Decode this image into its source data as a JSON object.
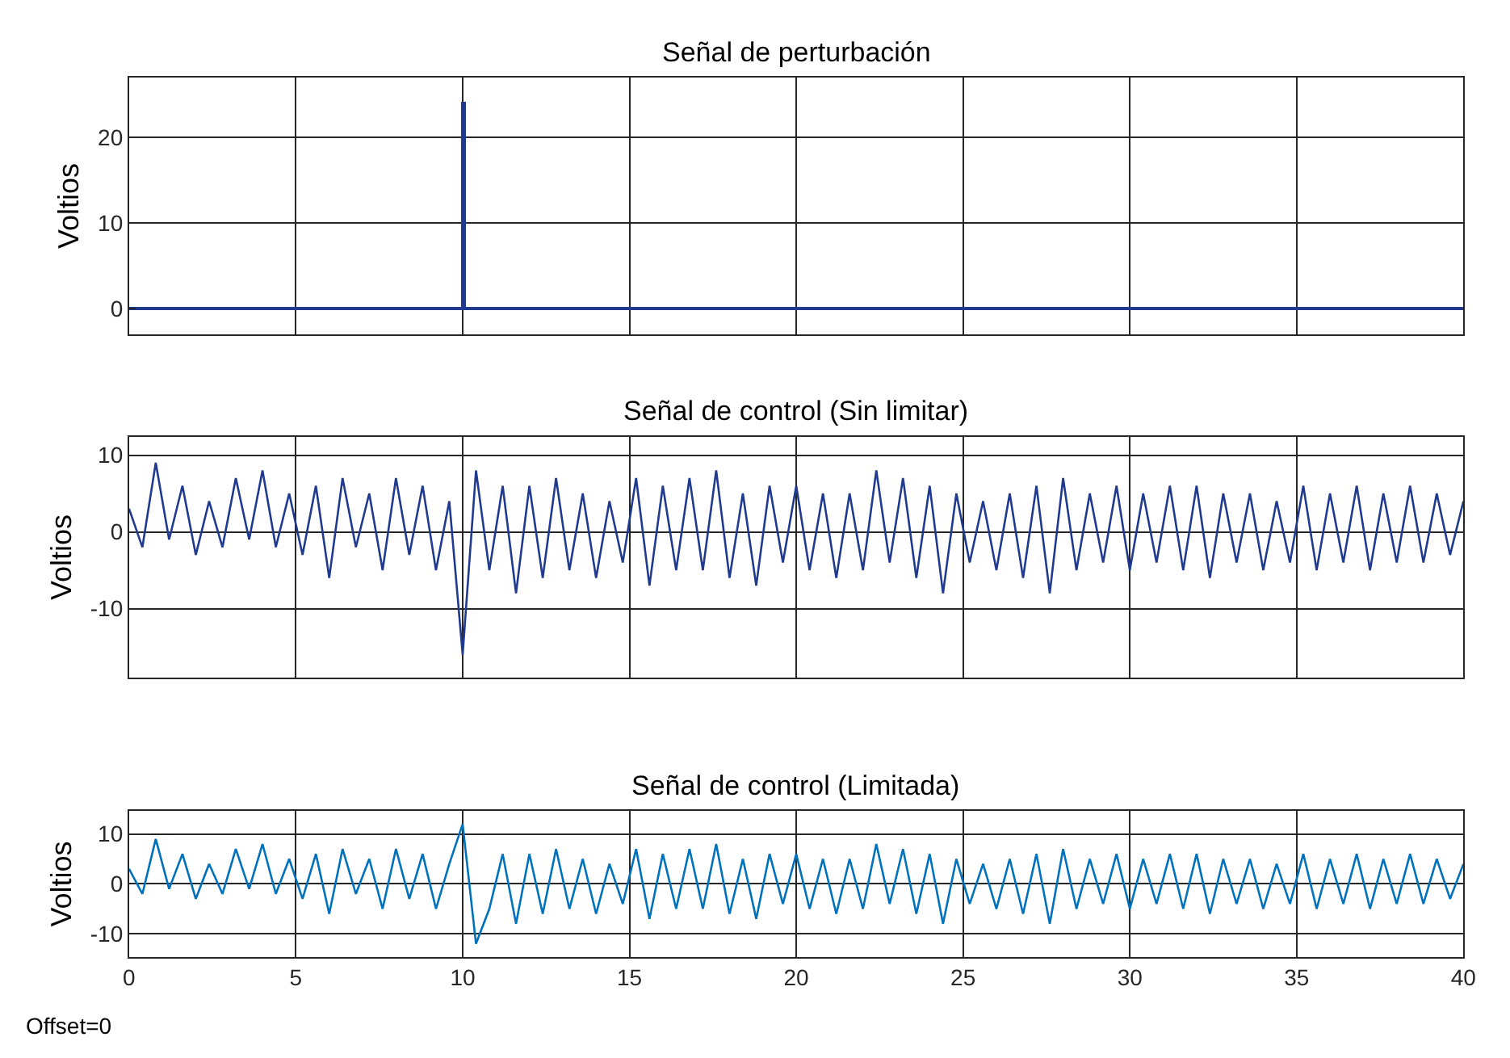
{
  "chart_data": [
    {
      "type": "line",
      "title": "Señal de perturbación",
      "ylabel": "Voltios",
      "x": [
        0,
        10,
        10,
        10.05,
        10.05,
        40
      ],
      "series": [
        {
          "color": "#203a90",
          "values": [
            0,
            0,
            24,
            24,
            0,
            0
          ]
        }
      ],
      "xlim": [
        0,
        40
      ],
      "xticks": [
        0,
        5,
        10,
        15,
        20,
        25,
        30,
        35,
        40
      ],
      "ylim": [
        -3,
        27
      ],
      "yticks": [
        0,
        10,
        20
      ],
      "grid": true,
      "tick_labels": "y"
    },
    {
      "type": "line",
      "title": "Señal de control (Sin limitar)",
      "ylabel": "Voltios",
      "x": [
        0,
        0.4,
        0.8,
        1.2,
        1.6,
        2,
        2.4,
        2.8,
        3.2,
        3.6,
        4,
        4.4,
        4.8,
        5.2,
        5.6,
        6,
        6.4,
        6.8,
        7.2,
        7.6,
        8,
        8.4,
        8.8,
        9.2,
        9.6,
        10,
        10.4,
        10.8,
        11.2,
        11.6,
        12,
        12.4,
        12.8,
        13.2,
        13.6,
        14,
        14.4,
        14.8,
        15.2,
        15.6,
        16,
        16.4,
        16.8,
        17.2,
        17.6,
        18,
        18.4,
        18.8,
        19.2,
        19.6,
        20,
        20.4,
        20.8,
        21.2,
        21.6,
        22,
        22.4,
        22.8,
        23.2,
        23.6,
        24,
        24.4,
        24.8,
        25.2,
        25.6,
        26,
        26.4,
        26.8,
        27.2,
        27.6,
        28,
        28.4,
        28.8,
        29.2,
        29.6,
        30,
        30.4,
        30.8,
        31.2,
        31.6,
        32,
        32.4,
        32.8,
        33.2,
        33.6,
        34,
        34.4,
        34.8,
        35.2,
        35.6,
        36,
        36.4,
        36.8,
        37.2,
        37.6,
        38,
        38.4,
        38.8,
        39.2,
        39.6,
        40
      ],
      "series": [
        {
          "color": "#203a90",
          "values": [
            3,
            -2,
            9,
            -1,
            6,
            -3,
            4,
            -2,
            7,
            -1,
            8,
            -2,
            5,
            -3,
            6,
            -6,
            7,
            -2,
            5,
            -5,
            7,
            -3,
            6,
            -5,
            4,
            -16,
            8,
            -5,
            6,
            -8,
            6,
            -6,
            7,
            -5,
            5,
            -6,
            4,
            -4,
            7,
            -7,
            6,
            -5,
            7,
            -5,
            8,
            -6,
            5,
            -7,
            6,
            -4,
            6,
            -5,
            5,
            -6,
            5,
            -5,
            8,
            -4,
            7,
            -6,
            6,
            -8,
            5,
            -4,
            4,
            -5,
            5,
            -6,
            6,
            -8,
            7,
            -5,
            5,
            -4,
            6,
            -5,
            5,
            -4,
            6,
            -5,
            6,
            -6,
            5,
            -4,
            5,
            -5,
            4,
            -4,
            6,
            -5,
            5,
            -4,
            6,
            -5,
            5,
            -4,
            6,
            -4,
            5,
            -3,
            4
          ]
        }
      ],
      "xlim": [
        0,
        40
      ],
      "xticks": [
        0,
        5,
        10,
        15,
        20,
        25,
        30,
        35,
        40
      ],
      "ylim": [
        -19,
        12.4
      ],
      "yticks": [
        -10,
        0,
        10
      ],
      "grid": true,
      "tick_labels": "y"
    },
    {
      "type": "line",
      "title": "Señal de control (Limitada)",
      "ylabel": "Voltios",
      "annotations": [
        "Offset=0"
      ],
      "x": [
        0,
        0.4,
        0.8,
        1.2,
        1.6,
        2,
        2.4,
        2.8,
        3.2,
        3.6,
        4,
        4.4,
        4.8,
        5.2,
        5.6,
        6,
        6.4,
        6.8,
        7.2,
        7.6,
        8,
        8.4,
        8.8,
        9.2,
        9.6,
        10,
        10.4,
        10.8,
        11.2,
        11.6,
        12,
        12.4,
        12.8,
        13.2,
        13.6,
        14,
        14.4,
        14.8,
        15.2,
        15.6,
        16,
        16.4,
        16.8,
        17.2,
        17.6,
        18,
        18.4,
        18.8,
        19.2,
        19.6,
        20,
        20.4,
        20.8,
        21.2,
        21.6,
        22,
        22.4,
        22.8,
        23.2,
        23.6,
        24,
        24.4,
        24.8,
        25.2,
        25.6,
        26,
        26.4,
        26.8,
        27.2,
        27.6,
        28,
        28.4,
        28.8,
        29.2,
        29.6,
        30,
        30.4,
        30.8,
        31.2,
        31.6,
        32,
        32.4,
        32.8,
        33.2,
        33.6,
        34,
        34.4,
        34.8,
        35.2,
        35.6,
        36,
        36.4,
        36.8,
        37.2,
        37.6,
        38,
        38.4,
        38.8,
        39.2,
        39.6,
        40
      ],
      "series": [
        {
          "color": "#0072bd",
          "values": [
            3,
            -2,
            9,
            -1,
            6,
            -3,
            4,
            -2,
            7,
            -1,
            8,
            -2,
            5,
            -3,
            6,
            -6,
            7,
            -2,
            5,
            -5,
            7,
            -3,
            6,
            -5,
            4,
            12,
            -12,
            -5,
            6,
            -8,
            6,
            -6,
            7,
            -5,
            5,
            -6,
            4,
            -4,
            7,
            -7,
            6,
            -5,
            7,
            -5,
            8,
            -6,
            5,
            -7,
            6,
            -4,
            6,
            -5,
            5,
            -6,
            5,
            -5,
            8,
            -4,
            7,
            -6,
            6,
            -8,
            5,
            -4,
            4,
            -5,
            5,
            -6,
            6,
            -8,
            7,
            -5,
            5,
            -4,
            6,
            -5,
            5,
            -4,
            6,
            -5,
            6,
            -6,
            5,
            -4,
            5,
            -5,
            4,
            -4,
            6,
            -5,
            5,
            -4,
            6,
            -5,
            5,
            -4,
            6,
            -4,
            5,
            -3,
            4
          ]
        }
      ],
      "xlim": [
        0,
        40
      ],
      "xticks": [
        0,
        5,
        10,
        15,
        20,
        25,
        30,
        35,
        40
      ],
      "ylim": [
        -14.6,
        14.6
      ],
      "yticks": [
        -10,
        0,
        10
      ],
      "grid": true
    }
  ]
}
